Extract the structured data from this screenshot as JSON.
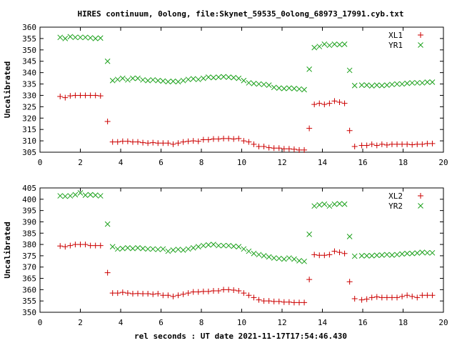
{
  "title": "HIRES continuum, 0olong, file:Skynet_59535_0olong_68973_17991.cyb.txt",
  "xlabel": "rel seconds : UT date 2021-11-17T17:54:46.430",
  "colors": {
    "red": "#cc0000",
    "green": "#1aa01a",
    "axis": "#000000"
  },
  "chart_data": [
    {
      "type": "scatter",
      "ylabel": "Uncalibrated",
      "xlim": [
        0,
        20
      ],
      "ylim": [
        305,
        360
      ],
      "xticks": [
        "0",
        "2",
        "4",
        "6",
        "8",
        "10",
        "12",
        "14",
        "16",
        "18",
        "20"
      ],
      "yticks": [
        "305",
        "310",
        "315",
        "320",
        "325",
        "330",
        "335",
        "340",
        "345",
        "350",
        "355",
        "360"
      ],
      "legend_position": "top-right",
      "series": [
        {
          "name": "XL1",
          "marker": "plus",
          "color": "#cc0000",
          "x": [
            1.0,
            1.25,
            1.5,
            1.75,
            2.0,
            2.25,
            2.5,
            2.75,
            3.0,
            3.35,
            3.6,
            3.85,
            4.1,
            4.35,
            4.6,
            4.85,
            5.1,
            5.35,
            5.6,
            5.85,
            6.1,
            6.35,
            6.6,
            6.85,
            7.1,
            7.35,
            7.6,
            7.85,
            8.1,
            8.35,
            8.6,
            8.85,
            9.1,
            9.35,
            9.6,
            9.85,
            10.1,
            10.35,
            10.6,
            10.85,
            11.1,
            11.35,
            11.6,
            11.85,
            12.1,
            12.35,
            12.6,
            12.85,
            13.1,
            13.35,
            13.6,
            13.85,
            14.1,
            14.35,
            14.6,
            14.85,
            15.1,
            15.35,
            15.6,
            15.95,
            16.2,
            16.45,
            16.7,
            16.95,
            17.2,
            17.45,
            17.7,
            17.95,
            18.2,
            18.45,
            18.7,
            18.95,
            19.2,
            19.45
          ],
          "y": [
            329.5,
            329,
            329.8,
            330,
            330,
            330,
            330,
            330,
            329.8,
            318.5,
            309.5,
            309.5,
            309.8,
            309.8,
            309.5,
            309.5,
            309.2,
            309,
            309.2,
            309,
            309,
            309,
            308.5,
            309,
            309.5,
            309.8,
            310,
            309.8,
            310.5,
            310.5,
            310.8,
            310.8,
            311,
            311,
            310.8,
            311,
            310,
            309.5,
            308.5,
            307.5,
            307.5,
            307,
            306.8,
            306.8,
            306.5,
            306.5,
            306.3,
            306,
            306,
            315.5,
            326,
            326.5,
            326,
            326.5,
            327.5,
            327,
            326.5,
            314.5,
            307.5,
            308,
            308,
            308.5,
            308,
            308.5,
            308.2,
            308.5,
            308.5,
            308.5,
            308.5,
            308.3,
            308.5,
            308.5,
            308.8,
            308.8
          ]
        },
        {
          "name": "YR1",
          "marker": "cross",
          "color": "#1aa01a",
          "x": [
            1.0,
            1.25,
            1.5,
            1.75,
            2.0,
            2.25,
            2.5,
            2.75,
            3.0,
            3.35,
            3.6,
            3.85,
            4.1,
            4.35,
            4.6,
            4.85,
            5.1,
            5.35,
            5.6,
            5.85,
            6.1,
            6.35,
            6.6,
            6.85,
            7.1,
            7.35,
            7.6,
            7.85,
            8.1,
            8.35,
            8.6,
            8.85,
            9.1,
            9.35,
            9.6,
            9.85,
            10.1,
            10.35,
            10.6,
            10.85,
            11.1,
            11.35,
            11.6,
            11.85,
            12.1,
            12.35,
            12.6,
            12.85,
            13.1,
            13.35,
            13.6,
            13.85,
            14.1,
            14.35,
            14.6,
            14.85,
            15.1,
            15.35,
            15.6,
            15.95,
            16.2,
            16.45,
            16.7,
            16.95,
            17.2,
            17.45,
            17.7,
            17.95,
            18.2,
            18.45,
            18.7,
            18.95,
            19.2,
            19.45
          ],
          "y": [
            355.5,
            355,
            355.8,
            355.5,
            355.5,
            355.5,
            355.3,
            355,
            355.2,
            345,
            336.5,
            337,
            337.5,
            336.8,
            337.5,
            337.5,
            336.8,
            336.5,
            336.8,
            336.5,
            336.3,
            336,
            336.2,
            336,
            336.5,
            337,
            337.3,
            337,
            337.5,
            338,
            337.8,
            338,
            338.2,
            338,
            337.8,
            337.5,
            336.5,
            335.5,
            335.2,
            335,
            334.8,
            334.5,
            333.5,
            333.2,
            333,
            333.2,
            333,
            332.8,
            332.5,
            341.5,
            351,
            351.5,
            352.5,
            352,
            352.5,
            352.3,
            352.5,
            341,
            334.3,
            334.5,
            334.5,
            334.2,
            334.5,
            334.3,
            334.5,
            334.8,
            335,
            335,
            335.3,
            335.5,
            335.5,
            335.5,
            335.8,
            335.8
          ]
        }
      ]
    },
    {
      "type": "scatter",
      "ylabel": "Uncalibrated",
      "xlim": [
        0,
        20
      ],
      "ylim": [
        350,
        405
      ],
      "xticks": [
        "0",
        "2",
        "4",
        "6",
        "8",
        "10",
        "12",
        "14",
        "16",
        "18",
        "20"
      ],
      "yticks": [
        "350",
        "355",
        "360",
        "365",
        "370",
        "375",
        "380",
        "385",
        "390",
        "395",
        "400",
        "405"
      ],
      "legend_position": "top-right",
      "series": [
        {
          "name": "XL2",
          "marker": "plus",
          "color": "#cc0000",
          "x": [
            1.0,
            1.25,
            1.5,
            1.75,
            2.0,
            2.25,
            2.5,
            2.75,
            3.0,
            3.35,
            3.6,
            3.85,
            4.1,
            4.35,
            4.6,
            4.85,
            5.1,
            5.35,
            5.6,
            5.85,
            6.1,
            6.35,
            6.6,
            6.85,
            7.1,
            7.35,
            7.6,
            7.85,
            8.1,
            8.35,
            8.6,
            8.85,
            9.1,
            9.35,
            9.6,
            9.85,
            10.1,
            10.35,
            10.6,
            10.85,
            11.1,
            11.35,
            11.6,
            11.85,
            12.1,
            12.35,
            12.6,
            12.85,
            13.1,
            13.35,
            13.6,
            13.85,
            14.1,
            14.35,
            14.6,
            14.85,
            15.1,
            15.35,
            15.6,
            15.95,
            16.2,
            16.45,
            16.7,
            16.95,
            17.2,
            17.45,
            17.7,
            17.95,
            18.2,
            18.45,
            18.7,
            18.95,
            19.2,
            19.45
          ],
          "y": [
            379.3,
            379,
            379.5,
            380,
            380,
            380,
            379.5,
            379.5,
            379.5,
            367.5,
            358.5,
            358.5,
            358.8,
            358.5,
            358.2,
            358.3,
            358.2,
            358.2,
            358,
            358.2,
            357.5,
            357.5,
            357,
            357.5,
            358,
            358.5,
            359,
            359,
            359.2,
            359.2,
            359.5,
            359.5,
            360,
            360,
            359.8,
            359.5,
            358.5,
            357.5,
            356.5,
            355.5,
            355,
            355,
            354.8,
            354.8,
            354.5,
            354.5,
            354.3,
            354.3,
            354.3,
            364.5,
            375.5,
            375.2,
            375.2,
            375.5,
            377,
            376.5,
            376,
            363.5,
            356,
            355.5,
            355.8,
            356.5,
            356.8,
            356.5,
            356.5,
            356.5,
            356.5,
            357,
            357.5,
            357,
            356.5,
            357.5,
            357.5,
            357.5
          ]
        },
        {
          "name": "YR2",
          "marker": "cross",
          "color": "#1aa01a",
          "x": [
            1.0,
            1.25,
            1.5,
            1.75,
            2.0,
            2.25,
            2.5,
            2.75,
            3.0,
            3.35,
            3.6,
            3.85,
            4.1,
            4.35,
            4.6,
            4.85,
            5.1,
            5.35,
            5.6,
            5.85,
            6.1,
            6.35,
            6.6,
            6.85,
            7.1,
            7.35,
            7.6,
            7.85,
            8.1,
            8.35,
            8.6,
            8.85,
            9.1,
            9.35,
            9.6,
            9.85,
            10.1,
            10.35,
            10.6,
            10.85,
            11.1,
            11.35,
            11.6,
            11.85,
            12.1,
            12.35,
            12.6,
            12.85,
            13.1,
            13.35,
            13.6,
            13.85,
            14.1,
            14.35,
            14.6,
            14.85,
            15.1,
            15.35,
            15.6,
            15.95,
            16.2,
            16.45,
            16.7,
            16.95,
            17.2,
            17.45,
            17.7,
            17.95,
            18.2,
            18.45,
            18.7,
            18.95,
            19.2,
            19.45
          ],
          "y": [
            401.5,
            401.3,
            401.5,
            402,
            402.8,
            401.8,
            402,
            401.8,
            401.5,
            389,
            379,
            378,
            378.2,
            378.5,
            378.2,
            378.5,
            378.2,
            378,
            378,
            377.8,
            378,
            377,
            377.5,
            377.8,
            377.5,
            378,
            378.5,
            379,
            379.5,
            379.8,
            380,
            379.5,
            379.5,
            379.5,
            379.2,
            379,
            378,
            377,
            376,
            375.5,
            375,
            374.5,
            374,
            373.8,
            373.5,
            374,
            373.5,
            372.8,
            372.5,
            384.5,
            397,
            397.5,
            397.8,
            397,
            397.8,
            398,
            397.8,
            383.5,
            374.8,
            375,
            375,
            375,
            375.2,
            375.3,
            375.5,
            375.3,
            375.5,
            375.8,
            376,
            376,
            376.2,
            376.5,
            376.3,
            376.3
          ]
        }
      ]
    }
  ]
}
